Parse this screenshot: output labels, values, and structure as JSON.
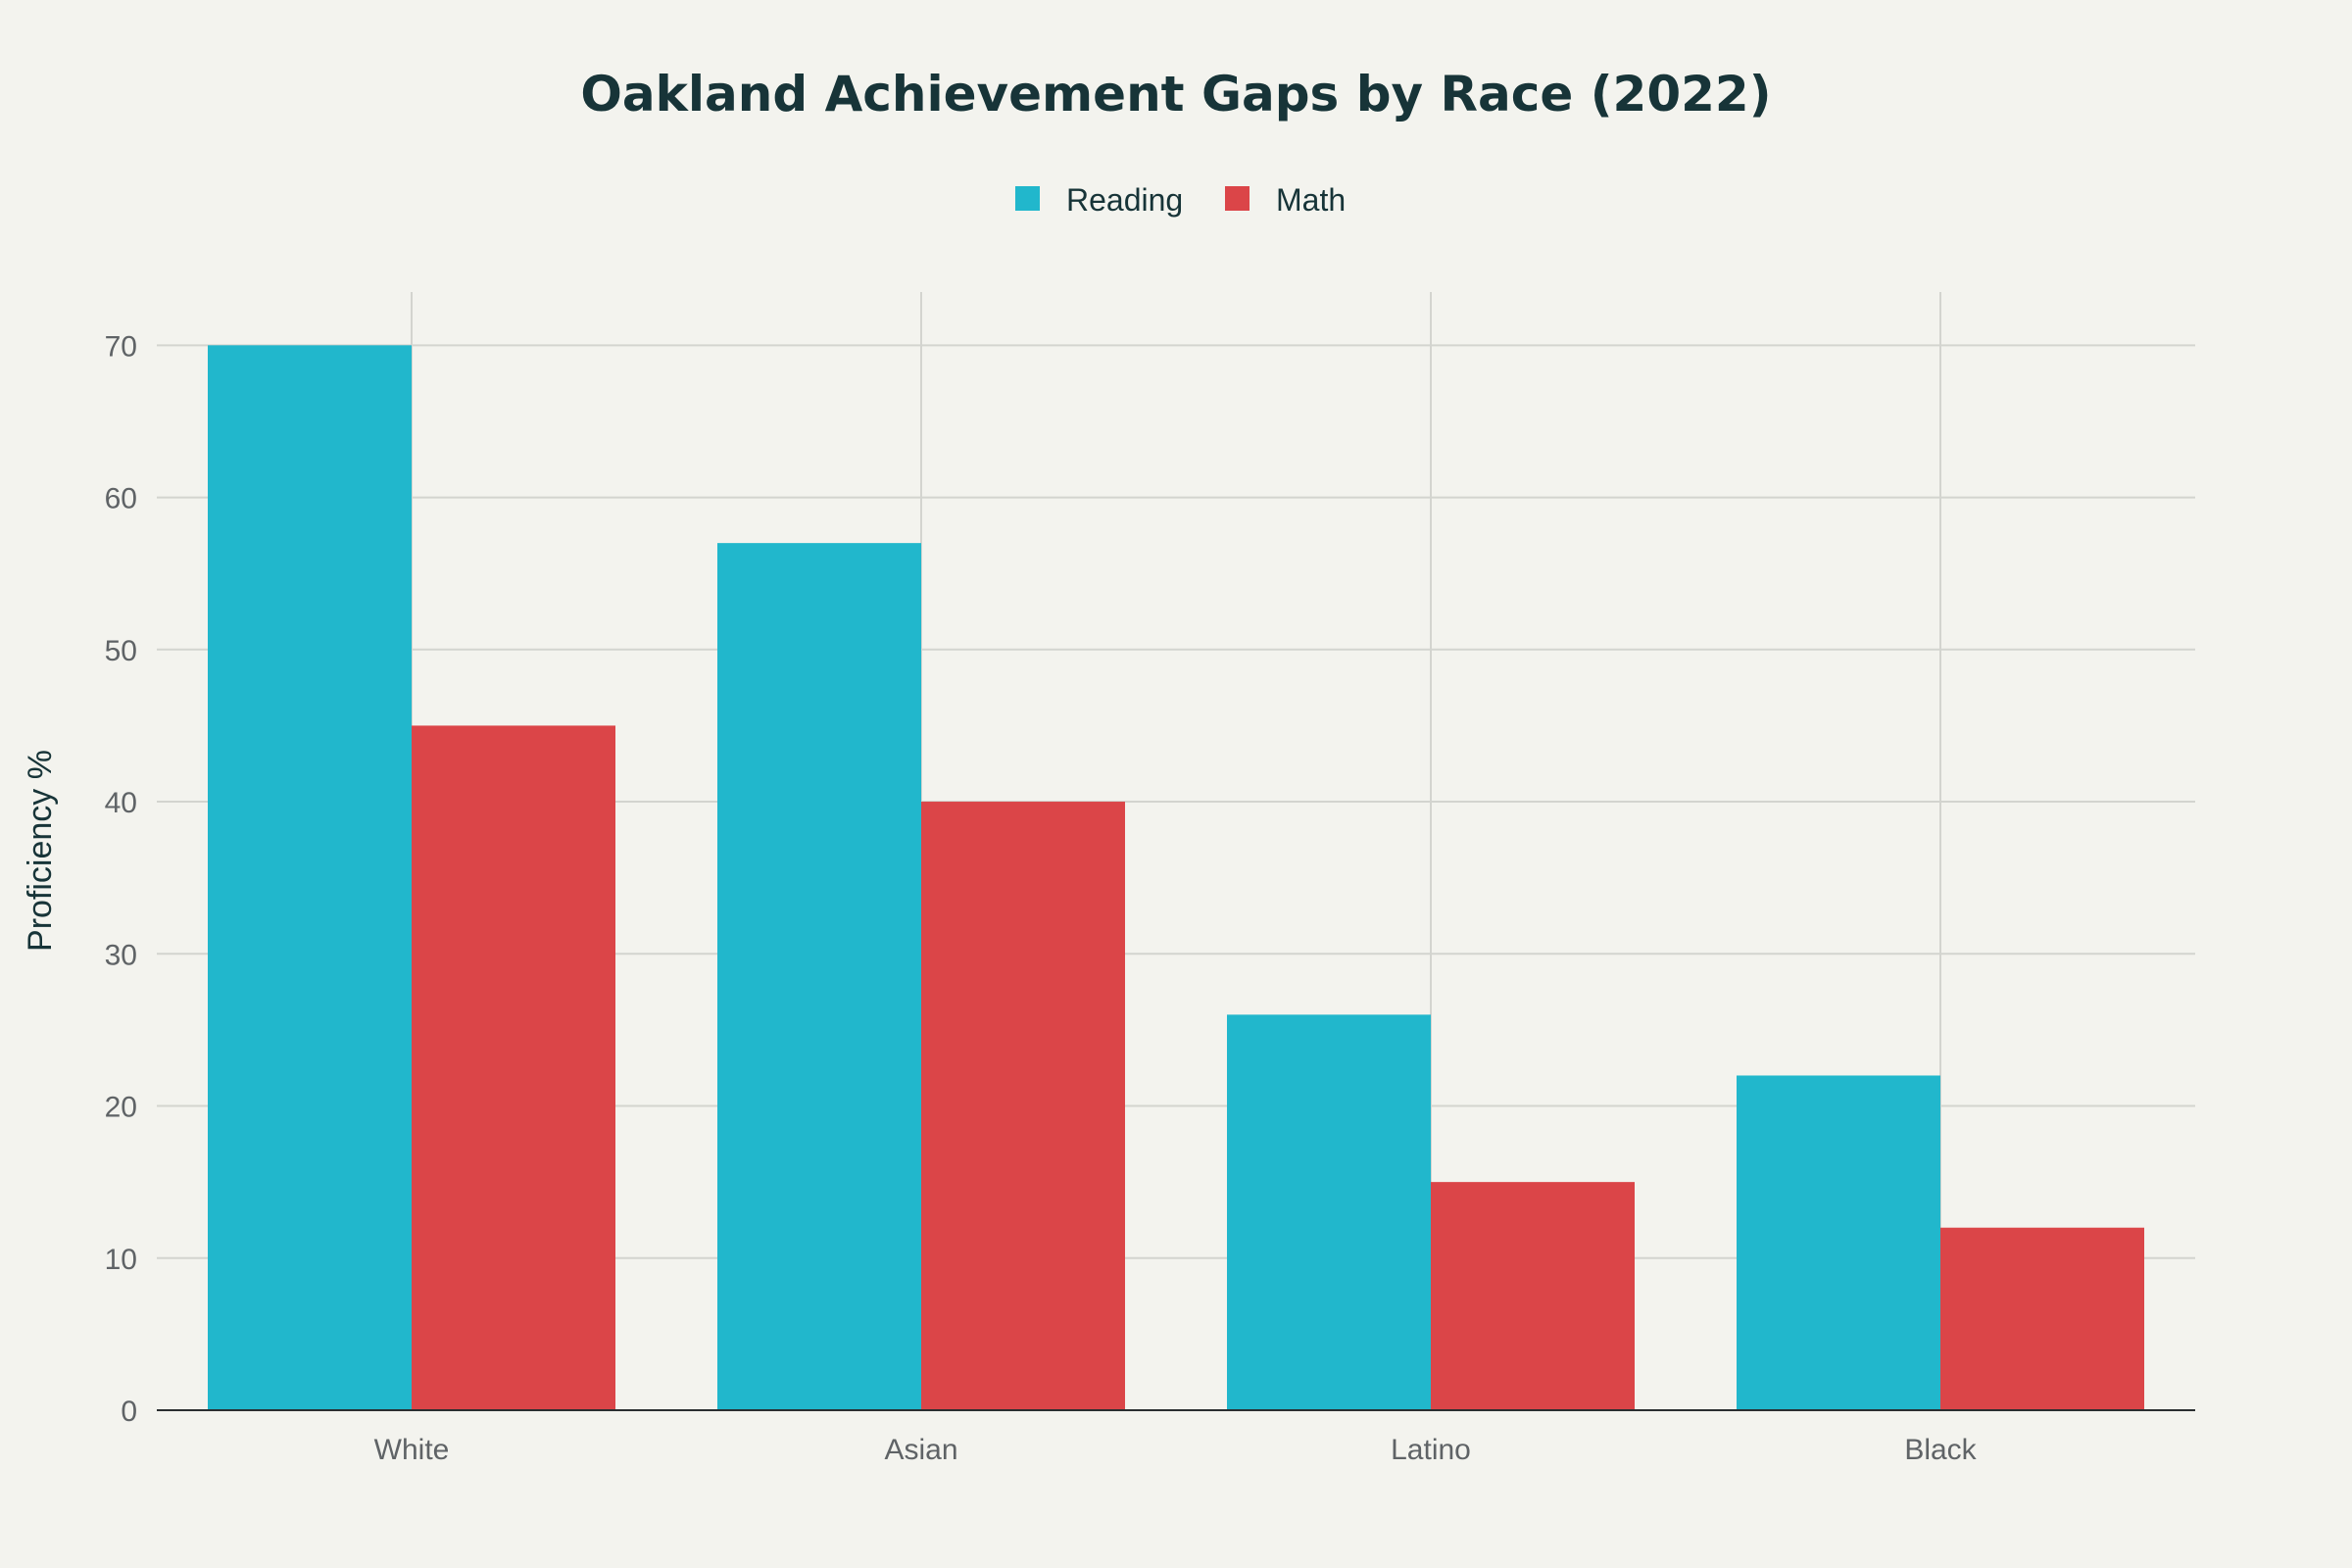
{
  "chart_data": {
    "type": "bar",
    "title": "Oakland Achievement Gaps by Race (2022)",
    "xlabel": "",
    "ylabel": "Proficiency %",
    "categories": [
      "White",
      "Asian",
      "Latino",
      "Black"
    ],
    "series": [
      {
        "name": "Reading",
        "color": "#21b7cc",
        "values": [
          70,
          57,
          26,
          22
        ]
      },
      {
        "name": "Math",
        "color": "#db4548",
        "values": [
          45,
          40,
          15,
          12
        ]
      }
    ],
    "ylim": [
      0,
      73.5
    ],
    "yticks": [
      0,
      10,
      20,
      30,
      40,
      50,
      60,
      70
    ],
    "grid": true,
    "legend_position": "top-center"
  }
}
